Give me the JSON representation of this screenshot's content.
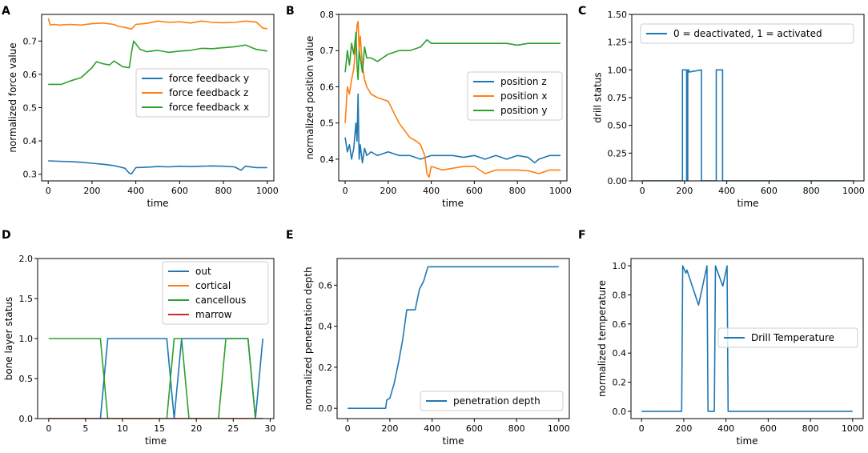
{
  "colors": {
    "blue": "#1f77b4",
    "orange": "#ff7f0e",
    "green": "#2ca02c",
    "red": "#d62728"
  },
  "chart_data": [
    {
      "panel": "A",
      "type": "line",
      "title": "",
      "xlabel": "time",
      "ylabel": "normalized force value",
      "xlim": [
        -30,
        1030
      ],
      "ylim": [
        0.28,
        0.78
      ],
      "xticks": [
        "0",
        "200",
        "400",
        "600",
        "800",
        "1000"
      ],
      "yticks": [
        "0.3",
        "0.4",
        "0.5",
        "0.6",
        "0.7"
      ],
      "legend_position": "center-right",
      "series": [
        {
          "name": "force feedback y",
          "color": "blue",
          "x": [
            0,
            50,
            100,
            150,
            200,
            250,
            300,
            350,
            370,
            380,
            400,
            450,
            500,
            550,
            600,
            650,
            700,
            750,
            800,
            850,
            880,
            900,
            950,
            1000
          ],
          "y": [
            0.34,
            0.339,
            0.338,
            0.336,
            0.333,
            0.33,
            0.326,
            0.318,
            0.303,
            0.301,
            0.32,
            0.321,
            0.323,
            0.322,
            0.324,
            0.323,
            0.324,
            0.325,
            0.324,
            0.322,
            0.312,
            0.324,
            0.32,
            0.32
          ]
        },
        {
          "name": "force feedback z",
          "color": "orange",
          "x": [
            0,
            10,
            30,
            50,
            100,
            150,
            200,
            250,
            300,
            320,
            350,
            380,
            400,
            450,
            500,
            550,
            600,
            650,
            700,
            750,
            800,
            850,
            900,
            950,
            980,
            1000
          ],
          "y": [
            0.768,
            0.748,
            0.75,
            0.748,
            0.75,
            0.748,
            0.752,
            0.754,
            0.75,
            0.744,
            0.741,
            0.736,
            0.75,
            0.753,
            0.76,
            0.756,
            0.758,
            0.754,
            0.76,
            0.756,
            0.755,
            0.756,
            0.76,
            0.757,
            0.739,
            0.737
          ]
        },
        {
          "name": "force feedback x",
          "color": "green",
          "x": [
            0,
            30,
            60,
            100,
            150,
            200,
            220,
            250,
            280,
            300,
            340,
            370,
            380,
            390,
            420,
            450,
            500,
            550,
            600,
            650,
            700,
            750,
            800,
            850,
            900,
            950,
            1000
          ],
          "y": [
            0.57,
            0.57,
            0.57,
            0.58,
            0.59,
            0.62,
            0.638,
            0.632,
            0.628,
            0.64,
            0.623,
            0.62,
            0.665,
            0.7,
            0.675,
            0.668,
            0.672,
            0.666,
            0.67,
            0.672,
            0.678,
            0.677,
            0.68,
            0.683,
            0.688,
            0.675,
            0.67
          ]
        }
      ]
    },
    {
      "panel": "B",
      "type": "line",
      "title": "",
      "xlabel": "time",
      "ylabel": "normalized position value",
      "xlim": [
        -30,
        1030
      ],
      "ylim": [
        0.34,
        0.8
      ],
      "xticks": [
        "0",
        "200",
        "400",
        "600",
        "800",
        "1000"
      ],
      "yticks": [
        "0.4",
        "0.5",
        "0.6",
        "0.7",
        "0.8"
      ],
      "legend_position": "center-right",
      "series": [
        {
          "name": "position z",
          "color": "blue",
          "x": [
            0,
            10,
            20,
            30,
            40,
            50,
            55,
            60,
            65,
            70,
            80,
            90,
            100,
            120,
            150,
            200,
            250,
            300,
            350,
            400,
            450,
            500,
            550,
            600,
            650,
            700,
            750,
            800,
            850,
            880,
            900,
            950,
            1000
          ],
          "y": [
            0.46,
            0.42,
            0.44,
            0.4,
            0.43,
            0.5,
            0.45,
            0.58,
            0.4,
            0.44,
            0.39,
            0.43,
            0.41,
            0.42,
            0.41,
            0.42,
            0.41,
            0.41,
            0.4,
            0.41,
            0.41,
            0.41,
            0.405,
            0.41,
            0.4,
            0.41,
            0.4,
            0.41,
            0.405,
            0.39,
            0.4,
            0.41,
            0.41
          ]
        },
        {
          "name": "position x",
          "color": "orange",
          "x": [
            0,
            10,
            20,
            30,
            40,
            50,
            55,
            60,
            65,
            70,
            80,
            90,
            100,
            120,
            150,
            200,
            250,
            300,
            330,
            350,
            370,
            380,
            390,
            400,
            450,
            500,
            550,
            600,
            650,
            700,
            750,
            800,
            850,
            900,
            950,
            1000
          ],
          "y": [
            0.5,
            0.6,
            0.58,
            0.62,
            0.65,
            0.72,
            0.77,
            0.78,
            0.7,
            0.74,
            0.66,
            0.62,
            0.6,
            0.58,
            0.57,
            0.56,
            0.5,
            0.46,
            0.45,
            0.44,
            0.41,
            0.36,
            0.35,
            0.38,
            0.37,
            0.375,
            0.38,
            0.38,
            0.36,
            0.37,
            0.37,
            0.37,
            0.368,
            0.36,
            0.37,
            0.37
          ]
        },
        {
          "name": "position y",
          "color": "green",
          "x": [
            0,
            10,
            20,
            30,
            40,
            50,
            55,
            60,
            65,
            70,
            80,
            90,
            100,
            120,
            150,
            200,
            250,
            300,
            350,
            380,
            400,
            450,
            500,
            550,
            600,
            650,
            700,
            750,
            800,
            850,
            900,
            950,
            1000
          ],
          "y": [
            0.64,
            0.7,
            0.66,
            0.72,
            0.69,
            0.75,
            0.66,
            0.62,
            0.7,
            0.68,
            0.64,
            0.71,
            0.68,
            0.68,
            0.67,
            0.69,
            0.7,
            0.7,
            0.71,
            0.73,
            0.72,
            0.72,
            0.72,
            0.72,
            0.72,
            0.72,
            0.72,
            0.72,
            0.715,
            0.72,
            0.72,
            0.72,
            0.72
          ]
        }
      ]
    },
    {
      "panel": "C",
      "type": "line",
      "title": "",
      "xlabel": "time",
      "ylabel": "drill status",
      "xlim": [
        -50,
        1050
      ],
      "ylim": [
        0,
        1.5
      ],
      "xticks": [
        "0",
        "200",
        "400",
        "600",
        "800",
        "1000"
      ],
      "yticks": [
        "0.00",
        "0.25",
        "0.50",
        "0.75",
        "1.00",
        "1.25",
        "1.50"
      ],
      "legend_position": "top",
      "series": [
        {
          "name": "0 = deactivated, 1 = activated",
          "color": "blue",
          "x": [
            0,
            190,
            190,
            210,
            210,
            215,
            215,
            220,
            220,
            280,
            280,
            350,
            350,
            380,
            380,
            1000
          ],
          "y": [
            0,
            0,
            1,
            1,
            0,
            0,
            1,
            1,
            0.98,
            1,
            0,
            0,
            1,
            1,
            0,
            0
          ]
        }
      ]
    },
    {
      "panel": "D",
      "type": "line",
      "title": "",
      "xlabel": "time",
      "ylabel": "bone layer status",
      "xlim": [
        -1.5,
        30.5
      ],
      "ylim": [
        0,
        2.0
      ],
      "xticks": [
        "0",
        "5",
        "10",
        "15",
        "20",
        "25",
        "30"
      ],
      "yticks": [
        "0.0",
        "0.5",
        "1.0",
        "1.5",
        "2.0"
      ],
      "legend_position": "top-right",
      "series": [
        {
          "name": "out",
          "color": "blue",
          "x": [
            0,
            7,
            8,
            16,
            17,
            18,
            19,
            23,
            24,
            27,
            28,
            29
          ],
          "y": [
            0,
            0,
            1,
            1,
            0,
            1,
            1,
            1,
            1,
            1,
            0,
            1
          ]
        },
        {
          "name": "cortical",
          "color": "orange",
          "x": [
            0,
            29
          ],
          "y": [
            0,
            0
          ]
        },
        {
          "name": "cancellous",
          "color": "green",
          "x": [
            0,
            7,
            8,
            16,
            17,
            18,
            19,
            23,
            24,
            27,
            28
          ],
          "y": [
            1,
            1,
            0,
            0,
            1,
            1,
            0,
            0,
            1,
            1,
            0
          ]
        },
        {
          "name": "marrow",
          "color": "red",
          "x": [
            0,
            29
          ],
          "y": [
            0,
            0
          ]
        }
      ]
    },
    {
      "panel": "E",
      "type": "line",
      "title": "",
      "xlabel": "time",
      "ylabel": "normalized penetration depth",
      "xlim": [
        -50,
        1050
      ],
      "ylim": [
        -0.05,
        0.73
      ],
      "xticks": [
        "0",
        "200",
        "400",
        "600",
        "800",
        "1000"
      ],
      "yticks": [
        "0.0",
        "0.2",
        "0.4",
        "0.6"
      ],
      "legend_position": "bottom-right",
      "series": [
        {
          "name": "penetration depth",
          "color": "blue",
          "x": [
            0,
            150,
            180,
            185,
            200,
            220,
            240,
            260,
            280,
            300,
            320,
            340,
            360,
            380,
            400,
            500,
            600,
            700,
            800,
            900,
            1000
          ],
          "y": [
            0,
            0,
            0,
            0.04,
            0.05,
            0.12,
            0.22,
            0.33,
            0.48,
            0.48,
            0.48,
            0.58,
            0.62,
            0.69,
            0.69,
            0.69,
            0.69,
            0.69,
            0.69,
            0.69,
            0.69
          ]
        }
      ]
    },
    {
      "panel": "F",
      "type": "line",
      "title": "",
      "xlabel": "time",
      "ylabel": "normalized temperature",
      "xlim": [
        -50,
        1050
      ],
      "ylim": [
        -0.05,
        1.05
      ],
      "xticks": [
        "0",
        "200",
        "400",
        "600",
        "800",
        "1000"
      ],
      "yticks": [
        "0.0",
        "0.2",
        "0.4",
        "0.6",
        "0.8",
        "1.0"
      ],
      "legend_position": "center-right",
      "series": [
        {
          "name": "Drill Temperature",
          "color": "blue",
          "x": [
            0,
            190,
            195,
            210,
            215,
            270,
            310,
            315,
            320,
            345,
            350,
            355,
            385,
            405,
            410,
            1000
          ],
          "y": [
            0,
            0,
            1.0,
            0.95,
            0.97,
            0.73,
            1.0,
            0,
            0,
            0,
            1.0,
            0.98,
            0.86,
            1.0,
            0,
            0
          ]
        }
      ]
    }
  ]
}
